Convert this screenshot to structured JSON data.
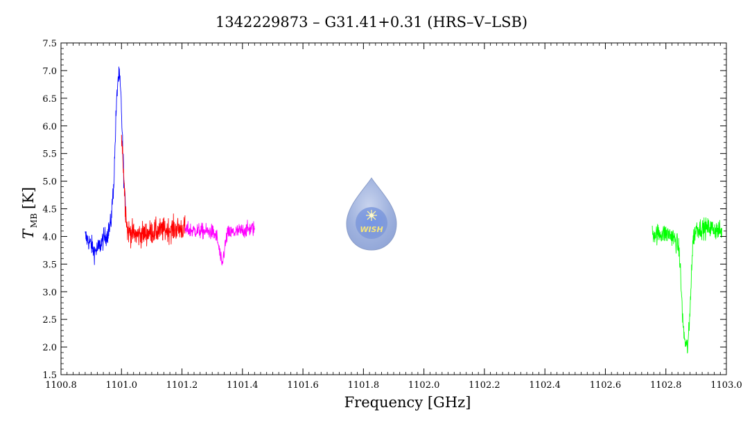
{
  "chart_data": {
    "type": "line",
    "title": "1342229873 – G31.41+0.31 (HRS–V–LSB)",
    "xlabel": "Frequency [GHz]",
    "ylabel_main": "T",
    "ylabel_sub": "MB",
    "ylabel_unit": "[K]",
    "xlim": [
      1100.8,
      1103.0
    ],
    "ylim": [
      1.5,
      7.5
    ],
    "xticks": [
      "1100.8",
      "1101.0",
      "1101.2",
      "1101.4",
      "1101.6",
      "1101.8",
      "1102.0",
      "1102.2",
      "1102.4",
      "1102.6",
      "1102.8",
      "1103.0"
    ],
    "yticks": [
      "1.5",
      "2.0",
      "2.5",
      "3.0",
      "3.5",
      "4.0",
      "4.5",
      "5.0",
      "5.5",
      "6.0",
      "6.5",
      "7.0",
      "7.5"
    ],
    "grid": false,
    "logo": {
      "text": "WISH"
    },
    "series": [
      {
        "color": "#0000ff",
        "x_range": [
          1100.88,
          1101.015
        ],
        "noise": 0.09,
        "profile": [
          [
            1100.88,
            4.0
          ],
          [
            1100.9,
            3.85
          ],
          [
            1100.91,
            3.72
          ],
          [
            1100.925,
            3.8
          ],
          [
            1100.94,
            3.95
          ],
          [
            1100.955,
            4.05
          ],
          [
            1100.965,
            4.25
          ],
          [
            1100.975,
            5.0
          ],
          [
            1100.982,
            6.2
          ],
          [
            1100.988,
            6.85
          ],
          [
            1100.993,
            6.9
          ],
          [
            1100.998,
            6.55
          ],
          [
            1101.003,
            5.8
          ],
          [
            1101.008,
            5.0
          ],
          [
            1101.015,
            4.3
          ]
        ]
      },
      {
        "color": "#ff0000",
        "x_range": [
          1101.0,
          1101.21
        ],
        "noise": 0.11,
        "profile": [
          [
            1101.0,
            5.9
          ],
          [
            1101.006,
            5.3
          ],
          [
            1101.012,
            4.6
          ],
          [
            1101.02,
            4.1
          ],
          [
            1101.05,
            4.02
          ],
          [
            1101.1,
            4.08
          ],
          [
            1101.15,
            4.12
          ],
          [
            1101.21,
            4.15
          ]
        ]
      },
      {
        "color": "#ff00ff",
        "x_range": [
          1101.21,
          1101.44
        ],
        "noise": 0.07,
        "profile": [
          [
            1101.21,
            4.12
          ],
          [
            1101.3,
            4.08
          ],
          [
            1101.315,
            4.0
          ],
          [
            1101.325,
            3.7
          ],
          [
            1101.332,
            3.45
          ],
          [
            1101.34,
            3.75
          ],
          [
            1101.35,
            4.05
          ],
          [
            1101.44,
            4.15
          ]
        ]
      },
      {
        "color": "#00ff00",
        "x_range": [
          1102.755,
          1102.985
        ],
        "noise": 0.09,
        "profile": [
          [
            1102.755,
            4.05
          ],
          [
            1102.8,
            4.05
          ],
          [
            1102.82,
            4.02
          ],
          [
            1102.84,
            3.85
          ],
          [
            1102.846,
            3.6
          ],
          [
            1102.852,
            2.9
          ],
          [
            1102.858,
            2.3
          ],
          [
            1102.865,
            2.05
          ],
          [
            1102.872,
            2.0
          ],
          [
            1102.878,
            2.4
          ],
          [
            1102.884,
            3.3
          ],
          [
            1102.89,
            3.95
          ],
          [
            1102.9,
            4.15
          ],
          [
            1102.95,
            4.15
          ],
          [
            1102.985,
            4.08
          ]
        ]
      }
    ]
  }
}
